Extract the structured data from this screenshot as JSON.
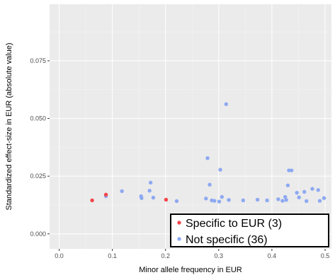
{
  "chart_data": {
    "type": "scatter",
    "xlabel": "Minor allele frequency in EUR",
    "ylabel": "Standardized effect-size in EUR (absolute value)",
    "xlim": [
      -0.018,
      0.512
    ],
    "ylim": [
      -0.0065,
      0.0995
    ],
    "x_ticks": [
      0.0,
      0.1,
      0.2,
      0.3,
      0.4,
      0.5
    ],
    "x_tick_labels": [
      "0.0",
      "0.1",
      "0.2",
      "0.3",
      "0.4",
      "0.5"
    ],
    "y_ticks": [
      0.0,
      0.025,
      0.05,
      0.075
    ],
    "y_tick_labels": [
      "0.000",
      "0.025",
      "0.050",
      "0.075"
    ],
    "grid": true,
    "legend_position": "bottom-right",
    "series": [
      {
        "name": "Specific to EUR (3)",
        "color": "#f5464c",
        "points": [
          {
            "x": 0.062,
            "y": 0.0145
          },
          {
            "x": 0.088,
            "y": 0.017
          },
          {
            "x": 0.201,
            "y": 0.0148
          }
        ]
      },
      {
        "name": "Not specific (36)",
        "color": "#8ea9f2",
        "points": [
          {
            "x": 0.088,
            "y": 0.0163
          },
          {
            "x": 0.118,
            "y": 0.0185
          },
          {
            "x": 0.154,
            "y": 0.0163
          },
          {
            "x": 0.155,
            "y": 0.0155
          },
          {
            "x": 0.17,
            "y": 0.0187
          },
          {
            "x": 0.172,
            "y": 0.0222
          },
          {
            "x": 0.177,
            "y": 0.0157
          },
          {
            "x": 0.221,
            "y": 0.0142
          },
          {
            "x": 0.276,
            "y": 0.0153
          },
          {
            "x": 0.279,
            "y": 0.0328
          },
          {
            "x": 0.283,
            "y": 0.0213
          },
          {
            "x": 0.287,
            "y": 0.0145
          },
          {
            "x": 0.292,
            "y": 0.0143
          },
          {
            "x": 0.301,
            "y": 0.014
          },
          {
            "x": 0.303,
            "y": 0.0278
          },
          {
            "x": 0.306,
            "y": 0.016
          },
          {
            "x": 0.314,
            "y": 0.0562
          },
          {
            "x": 0.319,
            "y": 0.0147
          },
          {
            "x": 0.346,
            "y": 0.0145
          },
          {
            "x": 0.373,
            "y": 0.0148
          },
          {
            "x": 0.391,
            "y": 0.0145
          },
          {
            "x": 0.412,
            "y": 0.015
          },
          {
            "x": 0.42,
            "y": 0.0143
          },
          {
            "x": 0.425,
            "y": 0.016
          },
          {
            "x": 0.427,
            "y": 0.0147
          },
          {
            "x": 0.43,
            "y": 0.021
          },
          {
            "x": 0.432,
            "y": 0.0275
          },
          {
            "x": 0.437,
            "y": 0.0275
          },
          {
            "x": 0.447,
            "y": 0.0178
          },
          {
            "x": 0.451,
            "y": 0.0158
          },
          {
            "x": 0.461,
            "y": 0.0182
          },
          {
            "x": 0.465,
            "y": 0.0142
          },
          {
            "x": 0.476,
            "y": 0.0195
          },
          {
            "x": 0.487,
            "y": 0.019
          },
          {
            "x": 0.49,
            "y": 0.0143
          },
          {
            "x": 0.498,
            "y": 0.0155
          }
        ]
      }
    ]
  }
}
